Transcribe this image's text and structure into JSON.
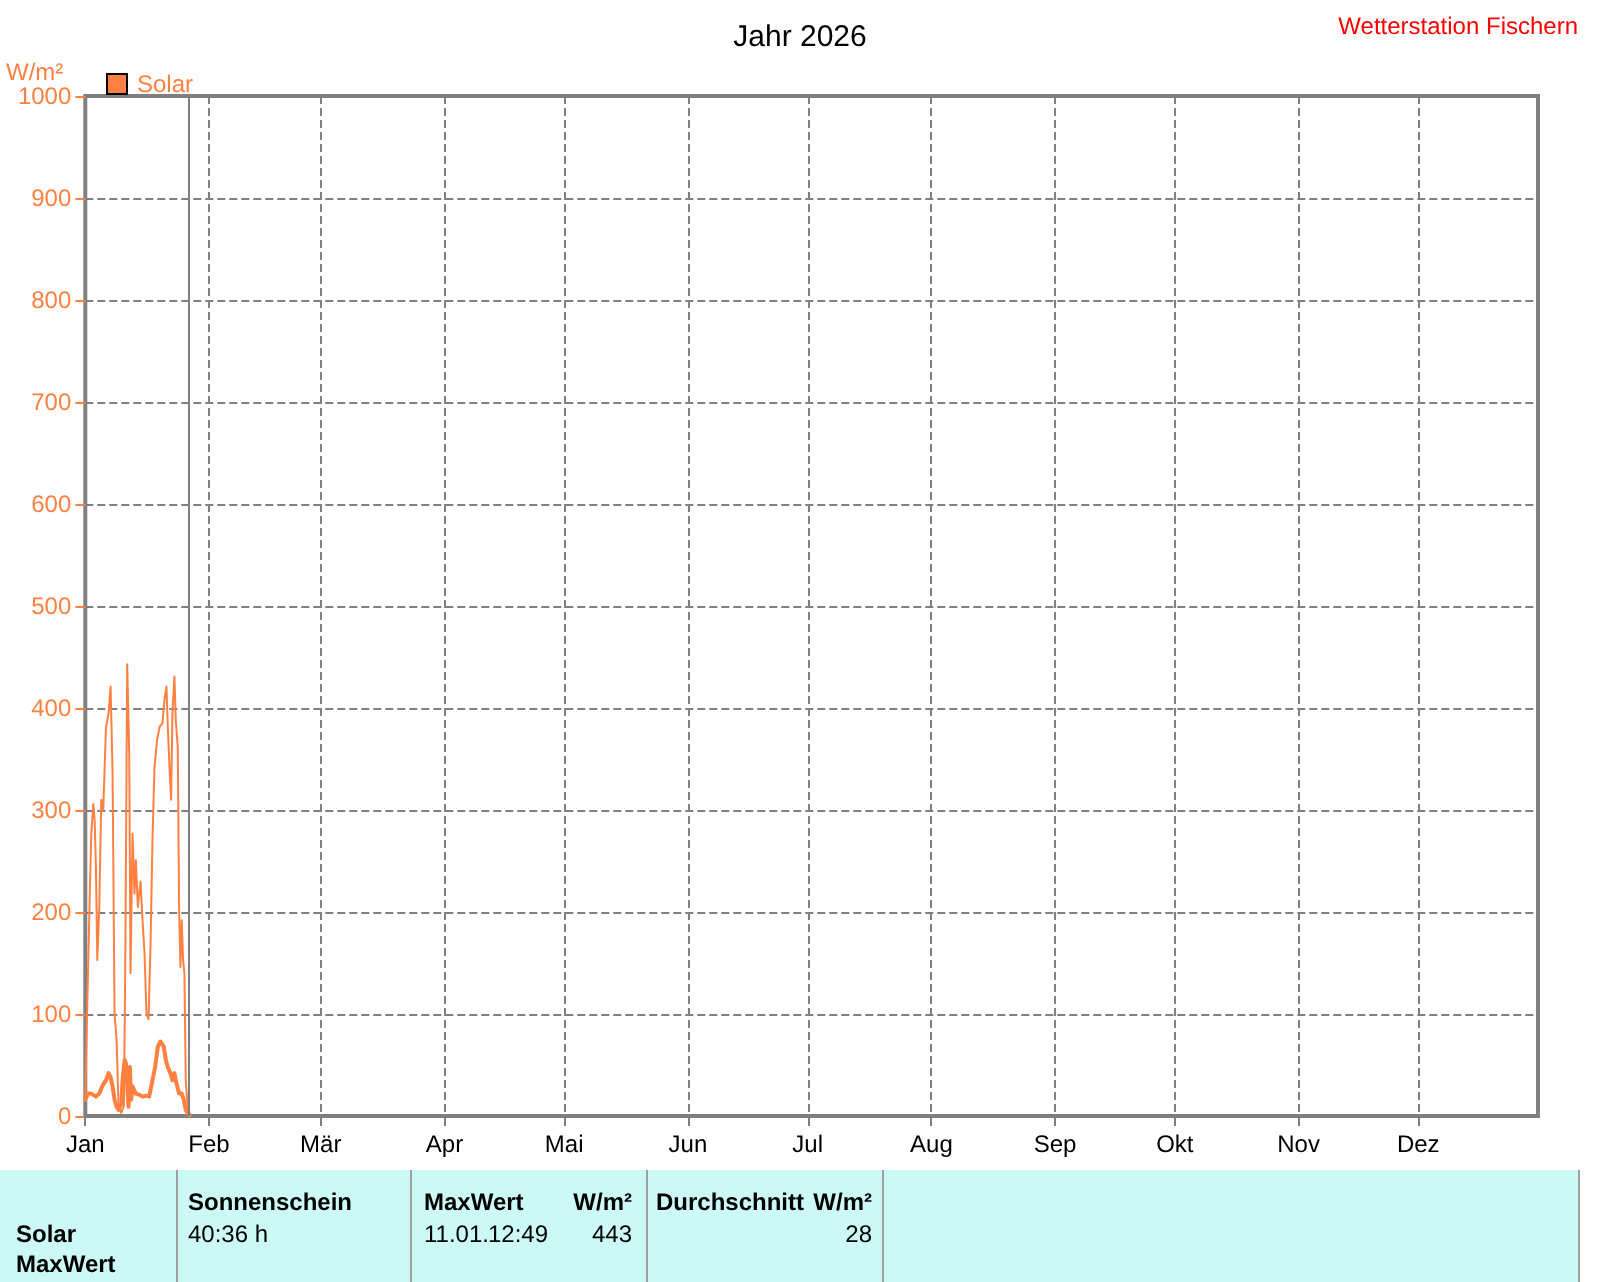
{
  "chart_data": {
    "type": "line",
    "title": "Jahr 2026",
    "ylabel": "W/m²",
    "annotations": [
      "Wetterstation Fischern",
      "Solar",
      "MaxWert",
      "Sonnenschein",
      "40:36 h",
      "MaxWert",
      "W/m²",
      "11.01.",
      "12:49",
      "443",
      "Durchschnitt",
      "W/m²",
      "28"
    ],
    "series": [
      {
        "name": "Solar",
        "color": "#ff8040",
        "x": [
          "2026-01-01T00:00",
          "2026-01-01T16:00",
          "2026-01-02T04:00",
          "2026-01-02T12:00",
          "2026-01-03T00:00",
          "2026-01-03T08:00",
          "2026-01-03T16:00",
          "2026-01-04T00:00",
          "2026-01-04T12:00",
          "2026-01-05T00:00",
          "2026-01-05T12:00",
          "2026-01-06T04:00",
          "2026-01-06T20:00",
          "2026-01-07T08:00",
          "2026-01-07T20:00",
          "2026-01-08T08:00",
          "2026-01-08T20:00",
          "2026-01-09T08:00",
          "2026-01-10T00:00",
          "2026-01-10T16:00",
          "2026-01-11T00:00",
          "2026-01-11T08:00",
          "2026-01-11T12:00",
          "2026-01-12T00:00",
          "2026-01-12T08:00",
          "2026-01-12T20:00",
          "2026-01-13T08:00",
          "2026-01-13T16:00",
          "2026-01-14T04:00",
          "2026-01-14T20:00",
          "2026-01-15T08:00",
          "2026-01-15T20:00",
          "2026-01-16T08:00",
          "2026-01-16T20:00",
          "2026-01-17T08:00",
          "2026-01-17T20:00",
          "2026-01-18T08:00",
          "2026-01-19T00:00",
          "2026-01-19T16:00",
          "2026-01-20T08:00",
          "2026-01-20T20:00",
          "2026-01-21T08:00",
          "2026-01-21T16:00",
          "2026-01-22T04:00",
          "2026-01-22T12:00",
          "2026-01-22T20:00",
          "2026-01-23T08:00",
          "2026-01-23T16:00",
          "2026-01-24T04:00",
          "2026-01-24T12:00",
          "2026-01-24T20:00",
          "2026-01-25T04:00",
          "2026-01-25T12:00",
          "2026-01-25T20:00",
          "2026-01-26T04:00",
          "2026-01-26T16:00",
          "2026-01-27T04:00"
        ],
        "values": [
          20,
          140,
          225,
          277,
          306,
          290,
          244,
          153,
          205,
          310,
          300,
          380,
          395,
          421,
          336,
          100,
          75,
          9,
          3,
          10,
          140,
          342,
          443,
          356,
          140,
          277,
          218,
          251,
          205,
          230,
          192,
          160,
          100,
          95,
          166,
          271,
          342,
          369,
          382,
          385,
          408,
          421,
          382,
          336,
          310,
          395,
          431,
          388,
          362,
          205,
          146,
          192,
          153,
          140,
          35,
          9,
          0
        ]
      },
      {
        "color": "#ff8040",
        "x": [
          "2026-01-01T00:00",
          "2026-01-01T16:00",
          "2026-01-02T12:00",
          "2026-01-03T16:00",
          "2026-01-04T12:00",
          "2026-01-05T08:00",
          "2026-01-06T04:00",
          "2026-01-06T20:00",
          "2026-01-07T08:00",
          "2026-01-07T20:00",
          "2026-01-08T08:00",
          "2026-01-08T20:00",
          "2026-01-09T08:00",
          "2026-01-10T00:00",
          "2026-01-10T08:00",
          "2026-01-10T20:00",
          "2026-01-11T04:00",
          "2026-01-11T12:00",
          "2026-01-11T20:00",
          "2026-01-12T04:00",
          "2026-01-12T12:00",
          "2026-01-12T20:00",
          "2026-01-13T16:00",
          "2026-01-14T12:00",
          "2026-01-15T08:00",
          "2026-01-16T04:00",
          "2026-01-17T00:00",
          "2026-01-17T20:00",
          "2026-01-18T12:00",
          "2026-01-19T04:00",
          "2026-01-19T20:00",
          "2026-01-20T16:00",
          "2026-01-21T04:00",
          "2026-01-21T16:00",
          "2026-01-22T08:00",
          "2026-01-22T20:00",
          "2026-01-23T08:00",
          "2026-01-23T20:00",
          "2026-01-24T12:00",
          "2026-01-25T04:00",
          "2026-01-25T16:00",
          "2026-01-26T04:00",
          "2026-01-26T16:00",
          "2026-01-27T04:00"
        ],
        "values": [
          16,
          22,
          22,
          19,
          22,
          30,
          35,
          42,
          38,
          29,
          16,
          9,
          6,
          12,
          35,
          55,
          52,
          29,
          9,
          48,
          16,
          29,
          22,
          21,
          19,
          20,
          19,
          35,
          48,
          68,
          73,
          68,
          55,
          48,
          42,
          35,
          42,
          32,
          22,
          22,
          16,
          6,
          3,
          1
        ]
      }
    ],
    "xlim": [
      "2026-01-01",
      "2026-12-31"
    ],
    "xticks": [
      {
        "value": "2026-01-01",
        "label": "Jan"
      },
      {
        "value": "2026-02-01",
        "label": "Feb"
      },
      {
        "value": "2026-03-01",
        "label": "Mär"
      },
      {
        "value": "2026-04-01",
        "label": "Apr"
      },
      {
        "value": "2026-05-01",
        "label": "Mai"
      },
      {
        "value": "2026-06-01",
        "label": "Jun"
      },
      {
        "value": "2026-07-01",
        "label": "Jul"
      },
      {
        "value": "2026-08-01",
        "label": "Aug"
      },
      {
        "value": "2026-09-01",
        "label": "Sep"
      },
      {
        "value": "2026-10-01",
        "label": "Okt"
      },
      {
        "value": "2026-11-01",
        "label": "Nov"
      },
      {
        "value": "2026-12-01",
        "label": "Dez"
      }
    ],
    "ylim": [
      0,
      1000
    ],
    "yticks": [
      0,
      100,
      200,
      300,
      400,
      500,
      600,
      700,
      800,
      900,
      1000
    ],
    "grid": true,
    "legend": "top left",
    "marker": "none",
    "ref_lines": [
      {
        "axis": "x",
        "value": "2026-01-27",
        "color": "#808080"
      }
    ]
  }
}
